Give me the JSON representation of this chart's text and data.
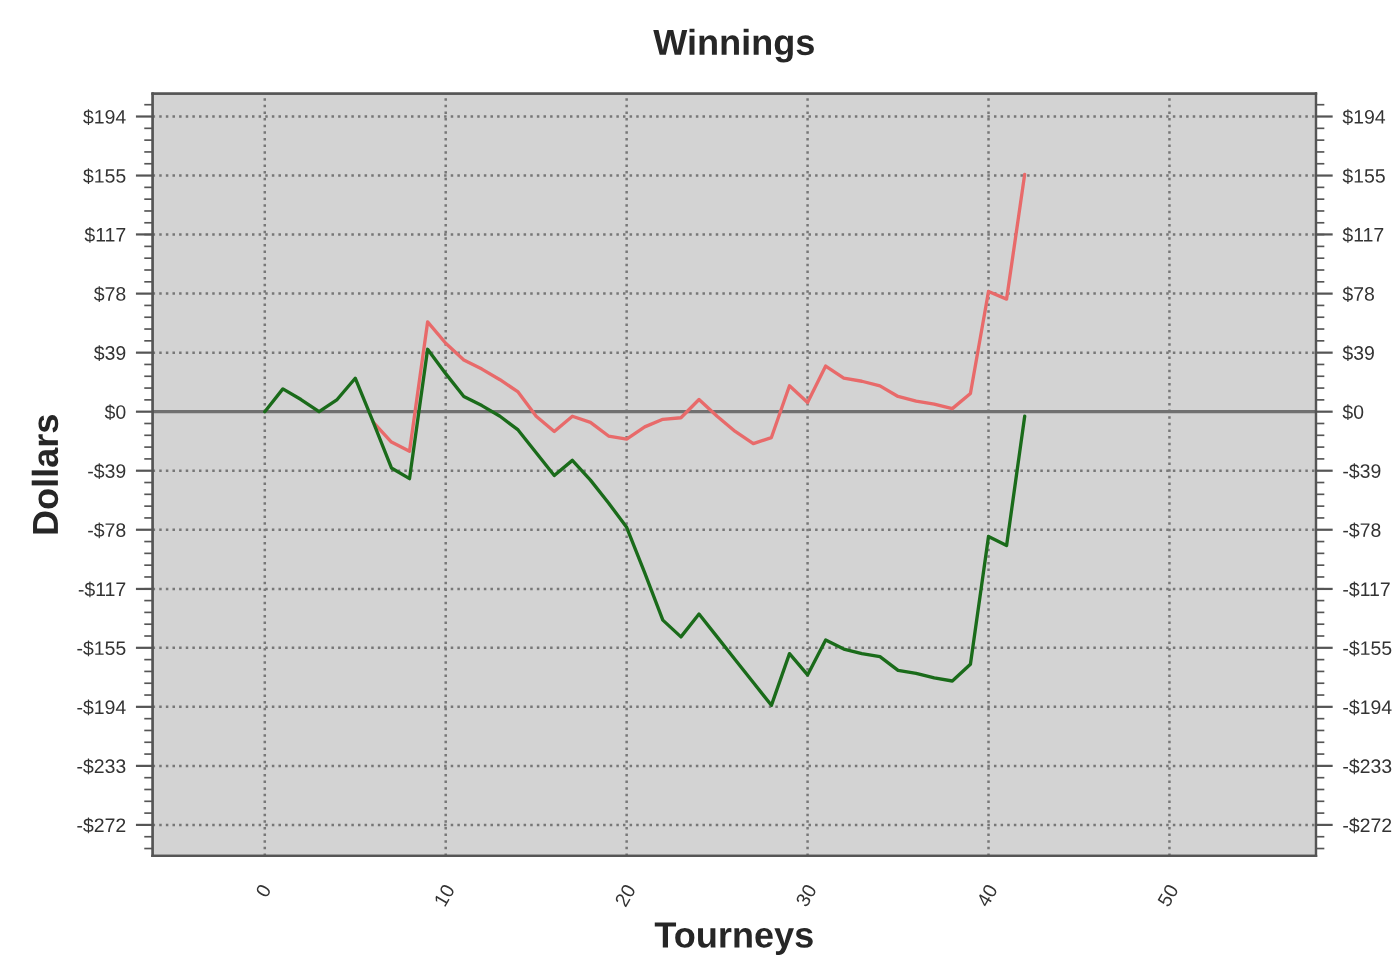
{
  "chart_data": {
    "type": "line",
    "title": "Winnings",
    "xlabel": "Tourneys",
    "ylabel": "Dollars",
    "x": [
      0,
      1,
      2,
      3,
      4,
      5,
      6,
      7,
      8,
      9,
      10,
      11,
      12,
      13,
      14,
      15,
      16,
      17,
      18,
      19,
      20,
      21,
      22,
      23,
      24,
      25,
      26,
      27,
      28,
      29,
      30,
      31,
      32,
      33,
      34,
      35,
      36,
      37,
      38,
      39,
      40,
      41,
      42
    ],
    "series": [
      {
        "color": "#e86a6a",
        "values": [
          null,
          null,
          null,
          null,
          null,
          null,
          -7,
          -20,
          -26,
          59,
          45,
          34,
          28,
          21,
          13,
          -3,
          -13,
          -3,
          -7,
          -16,
          -18,
          -10,
          -5,
          -4,
          8,
          -3,
          -13,
          -21,
          -17,
          17,
          6,
          30,
          22,
          20,
          17,
          10,
          7,
          5,
          2,
          12,
          79,
          74,
          156
        ]
      },
      {
        "color": "#1a6b1a",
        "values": [
          0,
          15,
          8,
          0,
          8,
          22,
          -7,
          -37,
          -44,
          41,
          25,
          10,
          4,
          -3,
          -12,
          -27,
          -42,
          -32,
          -45,
          -60,
          -76,
          -106,
          -137,
          -148,
          -133,
          -148,
          -163,
          -178,
          -193,
          -159,
          -173,
          -150,
          -156,
          -159,
          -161,
          -170,
          -172,
          -175,
          -177,
          -166,
          -82,
          -88,
          -3
        ]
      }
    ],
    "xlim": [
      -6.2,
      58.1
    ],
    "xticks": [
      0,
      10,
      20,
      30,
      40,
      50
    ],
    "ylim": [
      -292,
      209
    ],
    "yticks": [
      {
        "value": 194,
        "label": "$194"
      },
      {
        "value": 155.2,
        "label": "$155"
      },
      {
        "value": 116.5,
        "label": "$117"
      },
      {
        "value": 77.6,
        "label": "$78"
      },
      {
        "value": 38.8,
        "label": "$39"
      },
      {
        "value": 0,
        "label": "$0"
      },
      {
        "value": -38.8,
        "label": "-$39"
      },
      {
        "value": -77.6,
        "label": "-$78"
      },
      {
        "value": -116.5,
        "label": "-$117"
      },
      {
        "value": -155.2,
        "label": "-$155"
      },
      {
        "value": -194,
        "label": "-$194"
      },
      {
        "value": -232.8,
        "label": "-$233"
      },
      {
        "value": -271.6,
        "label": "-$272"
      }
    ],
    "y2lim": [
      -292,
      209
    ],
    "y2ticks": [
      {
        "value": 194,
        "label": "$194"
      },
      {
        "value": 155.2,
        "label": "$155"
      },
      {
        "value": 116.5,
        "label": "$117"
      },
      {
        "value": 77.6,
        "label": "$78"
      },
      {
        "value": 38.8,
        "label": "$39"
      },
      {
        "value": 0,
        "label": "$0"
      },
      {
        "value": -38.8,
        "label": "-$39"
      },
      {
        "value": -77.6,
        "label": "-$78"
      },
      {
        "value": -116.5,
        "label": "-$117"
      },
      {
        "value": -155.2,
        "label": "-$155"
      },
      {
        "value": -194,
        "label": "-$194"
      },
      {
        "value": -232.8,
        "label": "-$233"
      },
      {
        "value": -271.6,
        "label": "-$272"
      }
    ],
    "ref_lines": [
      {
        "axis": "y",
        "value": 0,
        "color": "#707070",
        "line_style": "solid"
      }
    ],
    "grid": true,
    "legend": false,
    "marker": "none",
    "line_style": "solid"
  }
}
